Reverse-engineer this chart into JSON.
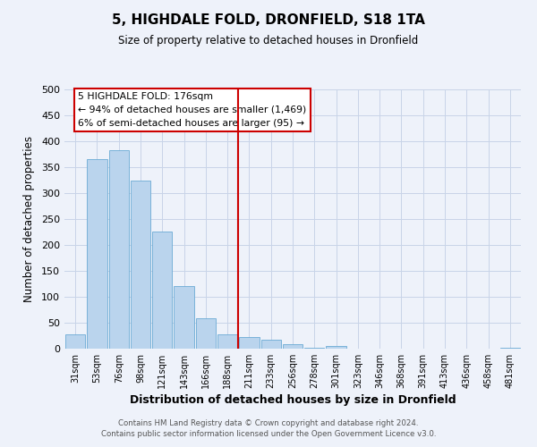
{
  "title": "5, HIGHDALE FOLD, DRONFIELD, S18 1TA",
  "subtitle": "Size of property relative to detached houses in Dronfield",
  "xlabel": "Distribution of detached houses by size in Dronfield",
  "ylabel": "Number of detached properties",
  "bar_labels": [
    "31sqm",
    "53sqm",
    "76sqm",
    "98sqm",
    "121sqm",
    "143sqm",
    "166sqm",
    "188sqm",
    "211sqm",
    "233sqm",
    "256sqm",
    "278sqm",
    "301sqm",
    "323sqm",
    "346sqm",
    "368sqm",
    "391sqm",
    "413sqm",
    "436sqm",
    "458sqm",
    "481sqm"
  ],
  "bar_values": [
    28,
    365,
    382,
    325,
    226,
    121,
    59,
    28,
    22,
    17,
    8,
    2,
    5,
    0,
    0,
    0,
    0,
    0,
    0,
    0,
    2
  ],
  "bar_color": "#bad4ed",
  "bar_edgecolor": "#6aaad4",
  "vline_x": 7.5,
  "vline_color": "#cc0000",
  "annotation_title": "5 HIGHDALE FOLD: 176sqm",
  "annotation_line1": "← 94% of detached houses are smaller (1,469)",
  "annotation_line2": "6% of semi-detached houses are larger (95) →",
  "box_edgecolor": "#cc0000",
  "ylim": [
    0,
    500
  ],
  "yticks": [
    0,
    50,
    100,
    150,
    200,
    250,
    300,
    350,
    400,
    450,
    500
  ],
  "grid_color": "#c8d4e8",
  "bg_color": "#eef2fa",
  "plot_bg_color": "#eef2fa",
  "footer1": "Contains HM Land Registry data © Crown copyright and database right 2024.",
  "footer2": "Contains public sector information licensed under the Open Government Licence v3.0."
}
